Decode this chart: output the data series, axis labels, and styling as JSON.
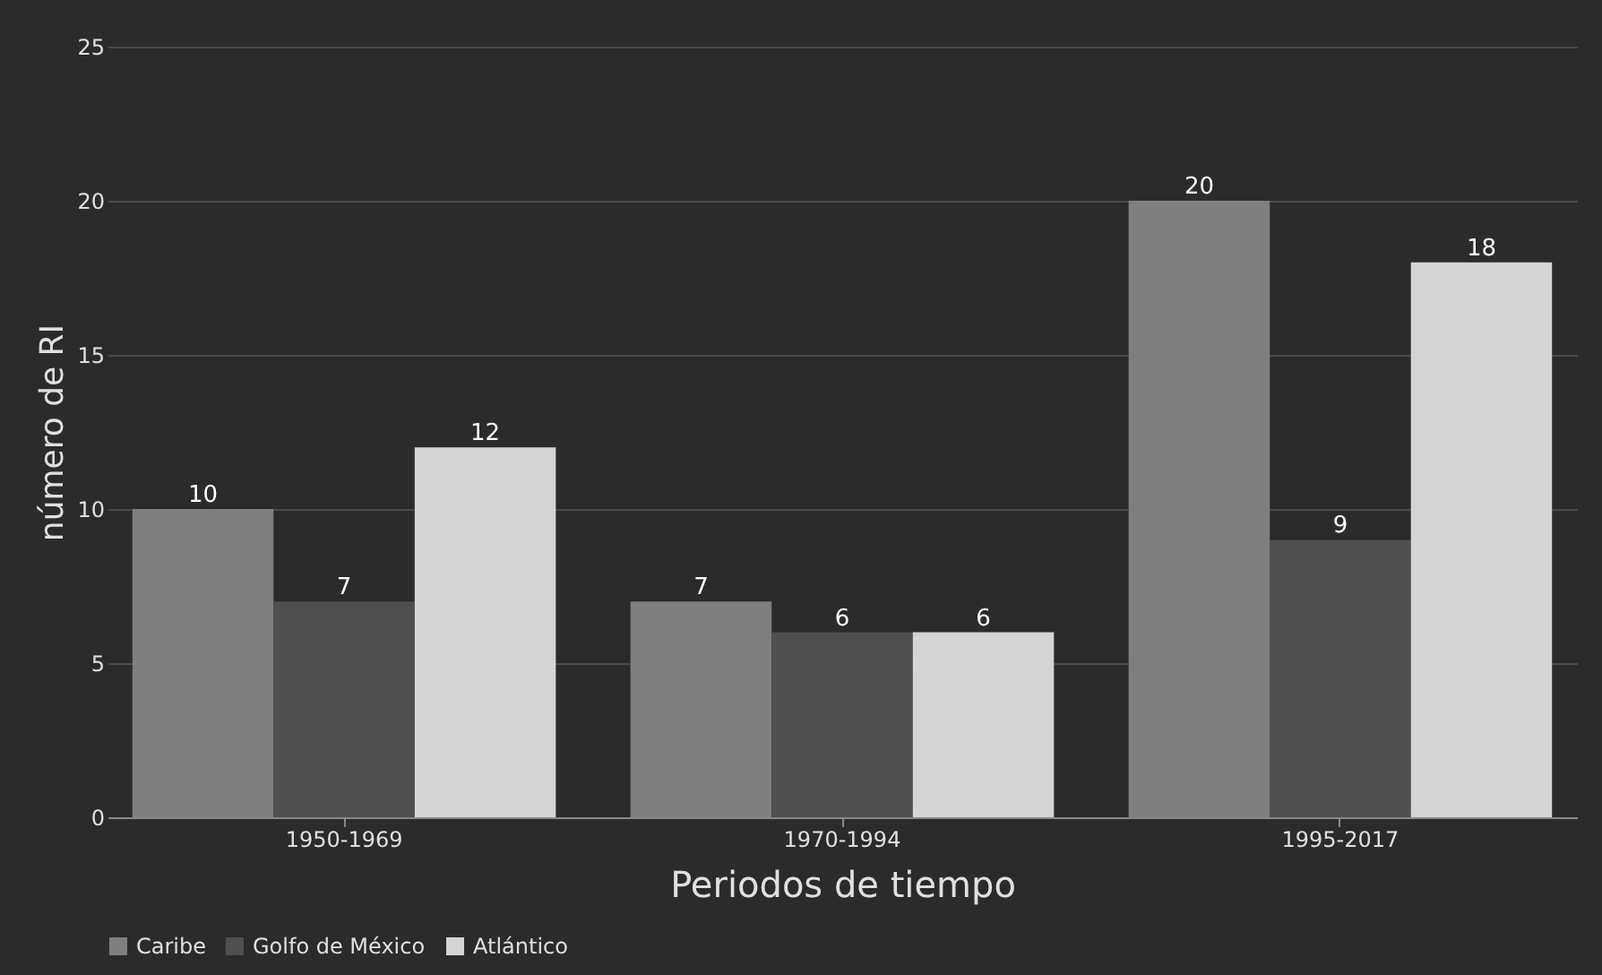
{
  "chart_data": {
    "type": "bar",
    "xlabel": "Periodos de tiempo",
    "ylabel": "número de RI",
    "categories": [
      "1950-1969",
      "1970-1994",
      "1995-2017"
    ],
    "series": [
      {
        "name": "Caribe",
        "color": "#7f7f7f",
        "values": [
          10,
          7,
          20
        ]
      },
      {
        "name": "Golfo de México",
        "color": "#4f4f4f",
        "values": [
          7,
          6,
          9
        ]
      },
      {
        "name": "Atlántico",
        "color": "#d4d4d4",
        "values": [
          12,
          6,
          18
        ]
      }
    ],
    "ylim": [
      0,
      25
    ],
    "yticks": [
      0,
      5,
      10,
      15,
      20,
      25
    ],
    "grid": "y",
    "legend": "bottom",
    "data_labels": true
  }
}
